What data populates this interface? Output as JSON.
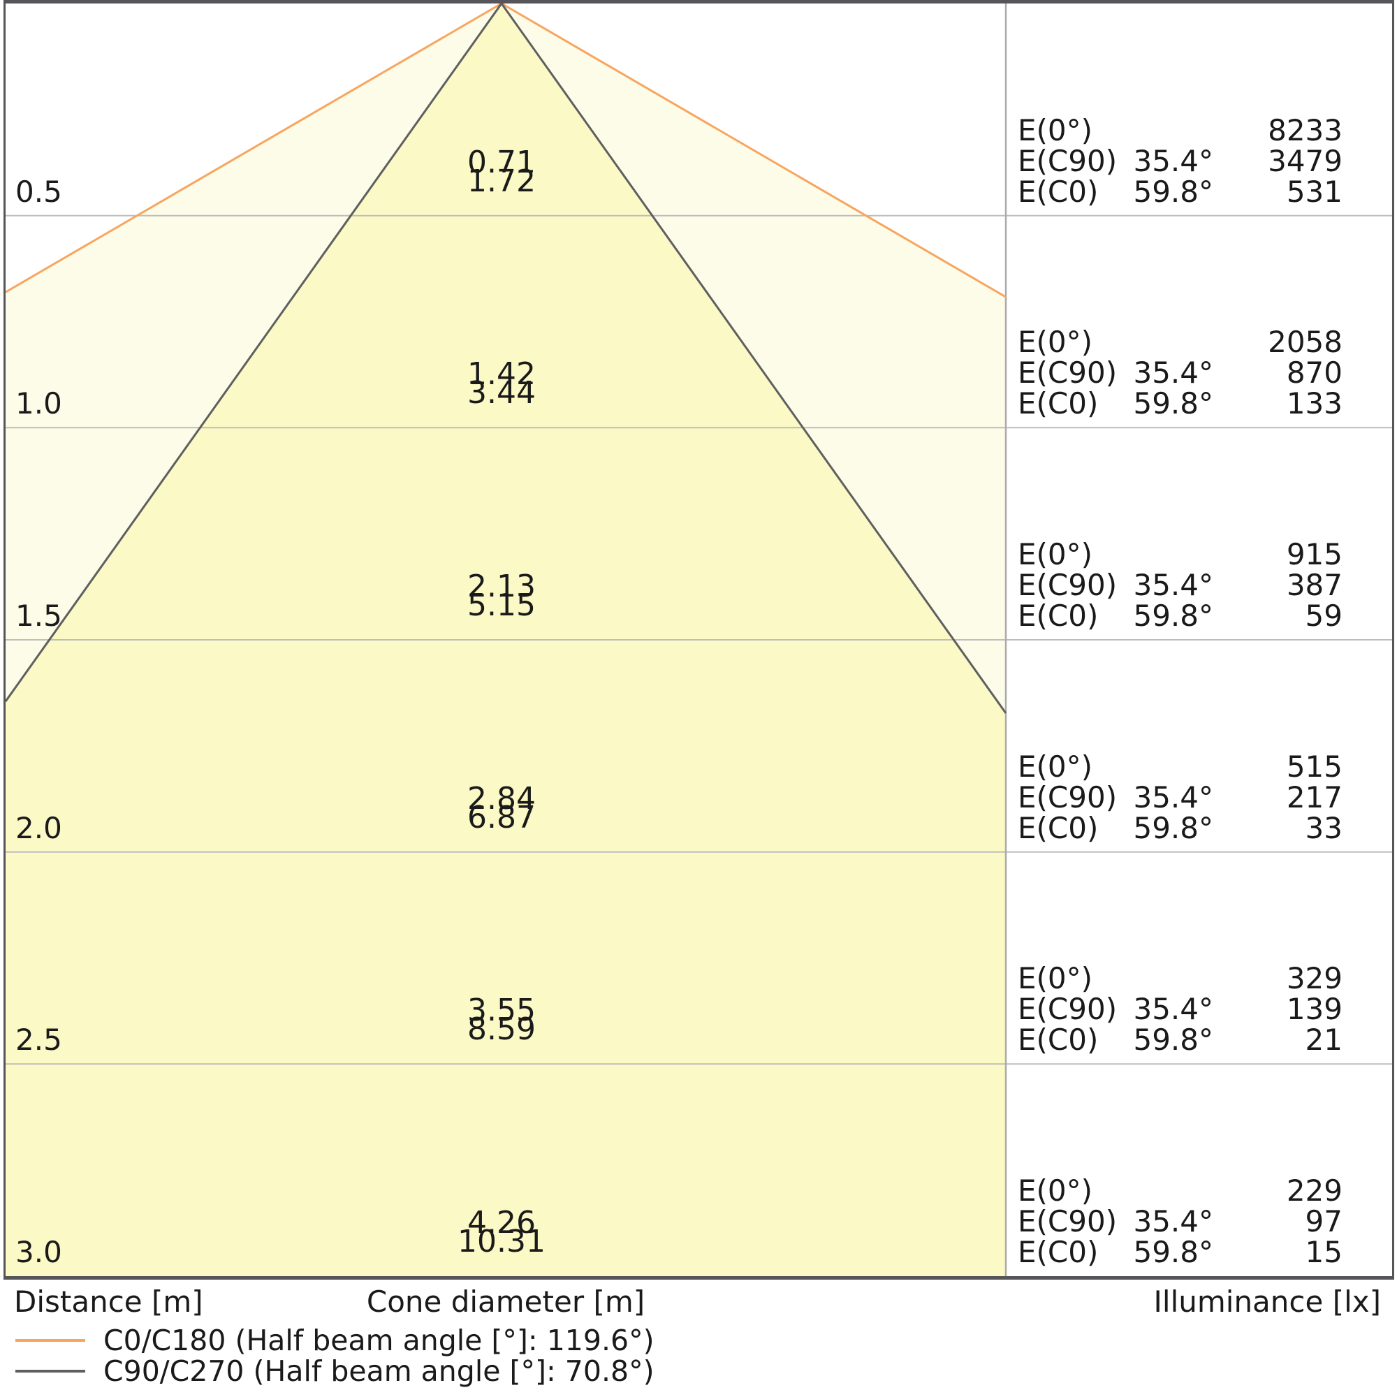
{
  "chart_data": {
    "type": "cone-diagram",
    "title": "Light cone diagram (luminaire photometric cone)",
    "distance_axis": {
      "label": "Distance [m]",
      "values": [
        "0.5",
        "1.0",
        "1.5",
        "2.0",
        "2.5",
        "3.0"
      ]
    },
    "cone_axis_label": "Cone diameter [m]",
    "illuminance_axis_label": "Illuminance [lx]",
    "series": [
      {
        "name": "C0/C180",
        "half_beam_angle_deg": 119.6,
        "color": "#f8a55e",
        "cone_diameters_m": [
          "1.72",
          "3.44",
          "5.15",
          "6.87",
          "8.59",
          "10.31"
        ]
      },
      {
        "name": "C90/C270",
        "half_beam_angle_deg": 70.8,
        "color": "#5f5f5f",
        "cone_diameters_m": [
          "0.71",
          "1.42",
          "2.13",
          "2.84",
          "3.55",
          "4.26"
        ]
      }
    ],
    "illuminance_rows": [
      {
        "entries": [
          {
            "label": "E(0°)",
            "angle": "",
            "value": "8233"
          },
          {
            "label": "E(C90)",
            "angle": "35.4°",
            "value": "3479"
          },
          {
            "label": "E(C0)",
            "angle": "59.8°",
            "value": "531"
          }
        ]
      },
      {
        "entries": [
          {
            "label": "E(0°)",
            "angle": "",
            "value": "2058"
          },
          {
            "label": "E(C90)",
            "angle": "35.4°",
            "value": "870"
          },
          {
            "label": "E(C0)",
            "angle": "59.8°",
            "value": "133"
          }
        ]
      },
      {
        "entries": [
          {
            "label": "E(0°)",
            "angle": "",
            "value": "915"
          },
          {
            "label": "E(C90)",
            "angle": "35.4°",
            "value": "387"
          },
          {
            "label": "E(C0)",
            "angle": "59.8°",
            "value": "59"
          }
        ]
      },
      {
        "entries": [
          {
            "label": "E(0°)",
            "angle": "",
            "value": "515"
          },
          {
            "label": "E(C90)",
            "angle": "35.4°",
            "value": "217"
          },
          {
            "label": "E(C0)",
            "angle": "59.8°",
            "value": "33"
          }
        ]
      },
      {
        "entries": [
          {
            "label": "E(0°)",
            "angle": "",
            "value": "329"
          },
          {
            "label": "E(C90)",
            "angle": "35.4°",
            "value": "139"
          },
          {
            "label": "E(C0)",
            "angle": "59.8°",
            "value": "21"
          }
        ]
      },
      {
        "entries": [
          {
            "label": "E(0°)",
            "angle": "",
            "value": "229"
          },
          {
            "label": "E(C90)",
            "angle": "35.4°",
            "value": "97"
          },
          {
            "label": "E(C0)",
            "angle": "59.8°",
            "value": "15"
          }
        ]
      }
    ],
    "layout": {
      "grid": true,
      "rows": 6,
      "legend_position": "bottom-left",
      "ylim_m": [
        0,
        3.0
      ]
    },
    "colors": {
      "inner_cone_fill": "#fbf9c5",
      "outer_cone_fill": "#fdfce9",
      "grid": "#bdbdbd",
      "divider": "#ababab",
      "border": "#55555a",
      "text": "#1a1a1a"
    }
  },
  "legend": [
    {
      "label": "C0/C180 (Half beam angle [°]: 119.6°)",
      "color": "#f8a55e"
    },
    {
      "label": "C90/C270 (Half beam angle [°]: 70.8°)",
      "color": "#5f5f5f"
    }
  ]
}
